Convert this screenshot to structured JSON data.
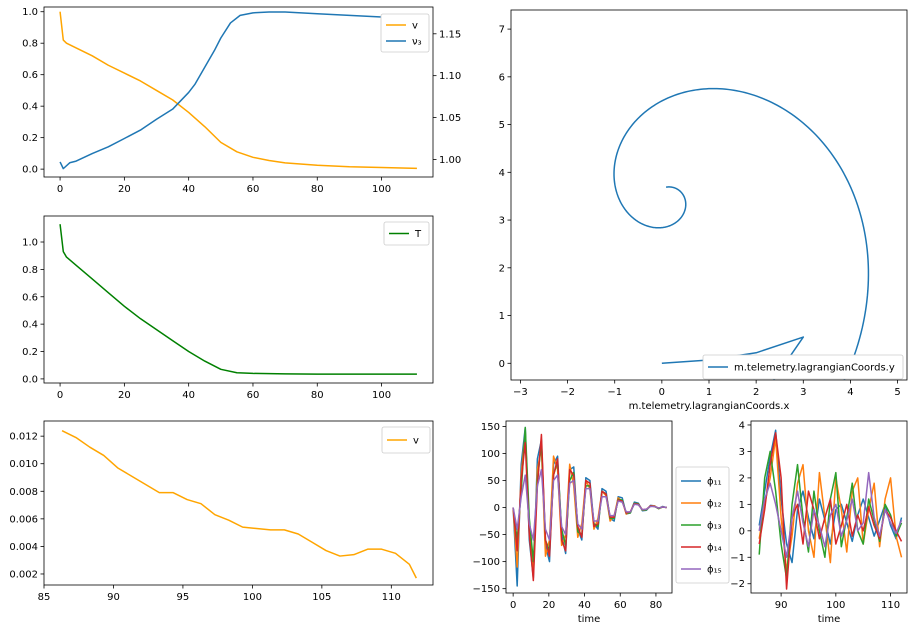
{
  "chart_data": [
    {
      "id": "p1",
      "type": "line",
      "xlim": [
        -5,
        116
      ],
      "ylim": [
        -0.05,
        1.03
      ],
      "y2lim": [
        0.979,
        1.182
      ],
      "xticks": [
        0,
        20,
        40,
        60,
        80,
        100
      ],
      "xtick_labels": [
        "0",
        "20",
        "40",
        "60",
        "80",
        "100"
      ],
      "yticks": [
        0.0,
        0.2,
        0.4,
        0.6,
        0.8,
        1.0
      ],
      "ytick_labels": [
        "0.0",
        "0.2",
        "0.4",
        "0.6",
        "0.8",
        "1.0"
      ],
      "y2ticks": [
        1.0,
        1.05,
        1.1,
        1.15
      ],
      "y2tick_labels": [
        "1.00",
        "1.05",
        "1.10",
        "1.15"
      ],
      "legend_position": "top-right",
      "series": [
        {
          "name": "v",
          "color": "#ffa500",
          "axis": "left",
          "x": [
            0,
            1,
            2,
            5,
            10,
            15,
            20,
            25,
            30,
            35,
            40,
            45,
            50,
            55,
            60,
            65,
            70,
            80,
            90,
            100,
            111
          ],
          "y": [
            1.0,
            0.82,
            0.8,
            0.77,
            0.72,
            0.66,
            0.61,
            0.56,
            0.5,
            0.44,
            0.36,
            0.27,
            0.17,
            0.11,
            0.075,
            0.055,
            0.04,
            0.025,
            0.015,
            0.01,
            0.005
          ]
        },
        {
          "name": "ν₃",
          "color": "#1f77b4",
          "axis": "right",
          "x": [
            0,
            1,
            3,
            5,
            10,
            15,
            20,
            25,
            30,
            35,
            40,
            42,
            45,
            48,
            50,
            53,
            56,
            60,
            65,
            70,
            80,
            90,
            100,
            111
          ],
          "y": [
            0.997,
            0.989,
            0.996,
            0.998,
            1.007,
            1.015,
            1.025,
            1.035,
            1.048,
            1.06,
            1.08,
            1.09,
            1.11,
            1.13,
            1.145,
            1.163,
            1.172,
            1.175,
            1.176,
            1.176,
            1.174,
            1.172,
            1.17,
            1.168
          ]
        }
      ]
    },
    {
      "id": "p2",
      "type": "line",
      "xlim": [
        -5,
        116
      ],
      "ylim": [
        -0.03,
        1.19
      ],
      "xticks": [
        0,
        20,
        40,
        60,
        80,
        100
      ],
      "xtick_labels": [
        "0",
        "20",
        "40",
        "60",
        "80",
        "100"
      ],
      "yticks": [
        0.0,
        0.2,
        0.4,
        0.6,
        0.8,
        1.0
      ],
      "ytick_labels": [
        "0.0",
        "0.2",
        "0.4",
        "0.6",
        "0.8",
        "1.0"
      ],
      "legend_position": "top-right",
      "series": [
        {
          "name": "T",
          "color": "#008000",
          "x": [
            0,
            1,
            2,
            5,
            10,
            15,
            20,
            25,
            30,
            35,
            40,
            45,
            50,
            55,
            60,
            70,
            80,
            90,
            100,
            111
          ],
          "y": [
            1.13,
            0.93,
            0.89,
            0.83,
            0.73,
            0.63,
            0.53,
            0.44,
            0.36,
            0.28,
            0.2,
            0.13,
            0.07,
            0.045,
            0.04,
            0.037,
            0.035,
            0.035,
            0.035,
            0.035
          ]
        }
      ]
    },
    {
      "id": "p3",
      "type": "line",
      "xlim": [
        85,
        113
      ],
      "ylim": [
        0.0012,
        0.0131
      ],
      "xticks": [
        85,
        90,
        95,
        100,
        105,
        110
      ],
      "xtick_labels": [
        "85",
        "90",
        "95",
        "100",
        "105",
        "110"
      ],
      "yticks": [
        0.002,
        0.004,
        0.006,
        0.008,
        0.01,
        0.012
      ],
      "ytick_labels": [
        "0.002",
        "0.004",
        "0.006",
        "0.008",
        "0.010",
        "0.012"
      ],
      "legend_position": "top-right",
      "series": [
        {
          "name": "v",
          "color": "#ffa500",
          "x": [
            86.3,
            87.3,
            88.3,
            89.3,
            90.3,
            91.3,
            92.3,
            93.3,
            94.3,
            95.3,
            96.3,
            97.3,
            98.3,
            99.3,
            100.3,
            101.3,
            102.3,
            103.3,
            104.3,
            105.3,
            106.3,
            107.3,
            108.3,
            109.3,
            110.3,
            111.3,
            111.8
          ],
          "y": [
            0.0124,
            0.0119,
            0.0112,
            0.0106,
            0.0097,
            0.0091,
            0.0085,
            0.0079,
            0.0079,
            0.0074,
            0.0071,
            0.0063,
            0.0059,
            0.0054,
            0.0053,
            0.0052,
            0.0052,
            0.0049,
            0.0043,
            0.0037,
            0.0033,
            0.0034,
            0.0038,
            0.0038,
            0.0035,
            0.0027,
            0.0017
          ]
        }
      ]
    },
    {
      "id": "p4",
      "type": "line",
      "xlabel": "m.telemetry.lagrangianCoords.x",
      "xlim": [
        -3.2,
        5.2
      ],
      "ylim": [
        -0.35,
        7.4
      ],
      "xticks": [
        -3,
        -2,
        -1,
        0,
        1,
        2,
        3,
        4,
        5
      ],
      "xtick_labels": [
        "−3",
        "−2",
        "−1",
        "0",
        "1",
        "2",
        "3",
        "4",
        "5"
      ],
      "yticks": [
        0,
        1,
        2,
        3,
        4,
        5,
        6,
        7
      ],
      "ytick_labels": [
        "0",
        "1",
        "2",
        "3",
        "4",
        "5",
        "6",
        "7"
      ],
      "legend_position": "bottom-right",
      "spiral": {
        "center_x": 0.05,
        "center_y": 3.5,
        "a": 0.95,
        "b": 0.39,
        "start_angle_deg": 90,
        "theta_max": 9.45
      },
      "series": [
        {
          "name": "m.telemetry.lagrangianCoords.y",
          "color": "#1f77b4"
        }
      ]
    },
    {
      "id": "p5",
      "type": "line",
      "xlabel": "time",
      "xlim": [
        -4,
        89
      ],
      "ylim": [
        -158,
        160
      ],
      "xticks": [
        0,
        20,
        40,
        60,
        80
      ],
      "xtick_labels": [
        "0",
        "20",
        "40",
        "60",
        "80"
      ],
      "yticks": [
        -150,
        -100,
        -50,
        0,
        50,
        100,
        150
      ],
      "ytick_labels": [
        "−150",
        "−100",
        "−50",
        "0",
        "50",
        "100",
        "150"
      ],
      "legend_position": "outside-right",
      "series": [
        {
          "name": "ϕ₁₁",
          "color": "#1f77b4",
          "x_start": 0,
          "x_end": 86,
          "y": [
            0,
            -145,
            80,
            148,
            -60,
            -130,
            90,
            125,
            -70,
            -100,
            80,
            95,
            -50,
            -85,
            70,
            75,
            -40,
            -60,
            55,
            50,
            -30,
            -40,
            35,
            30,
            -20,
            -25,
            20,
            18,
            -12,
            -10,
            10,
            8,
            -6,
            -5,
            4,
            3,
            -2,
            2,
            0
          ]
        },
        {
          "name": "ϕ₁₂",
          "color": "#ff7f0e",
          "x_start": 0,
          "x_end": 86,
          "y": [
            0,
            -110,
            60,
            140,
            -40,
            -120,
            70,
            110,
            -90,
            -60,
            95,
            70,
            -70,
            -50,
            80,
            40,
            -55,
            -30,
            50,
            35,
            -40,
            -20,
            30,
            22,
            -25,
            -15,
            18,
            12,
            -12,
            -8,
            8,
            6,
            -5,
            -4,
            3,
            3,
            -2,
            1,
            0
          ]
        },
        {
          "name": "ϕ₁₃",
          "color": "#2ca02c",
          "x_start": 0,
          "x_end": 86,
          "y": [
            0,
            -60,
            30,
            148,
            -20,
            -100,
            50,
            120,
            -60,
            -80,
            60,
            85,
            -40,
            -70,
            50,
            65,
            -45,
            -50,
            40,
            40,
            -30,
            -35,
            30,
            25,
            -20,
            -20,
            15,
            14,
            -10,
            -10,
            8,
            7,
            -5,
            -4,
            3,
            2,
            -2,
            1,
            0
          ]
        },
        {
          "name": "ϕ₁₄",
          "color": "#d62728",
          "x_start": 0,
          "x_end": 86,
          "y": [
            0,
            -80,
            50,
            120,
            -50,
            -135,
            40,
            135,
            -60,
            -90,
            60,
            90,
            -60,
            -80,
            70,
            60,
            -35,
            -55,
            50,
            45,
            -35,
            -30,
            30,
            25,
            -18,
            -18,
            14,
            12,
            -10,
            -8,
            7,
            6,
            -4,
            -3,
            3,
            2,
            -1,
            1,
            0
          ]
        },
        {
          "name": "ϕ₁₅",
          "color": "#9467bd",
          "x_start": 0,
          "x_end": 86,
          "y": [
            0,
            -40,
            20,
            60,
            -30,
            -60,
            40,
            70,
            -40,
            -60,
            50,
            60,
            -35,
            -50,
            45,
            50,
            -30,
            -40,
            35,
            35,
            -25,
            -25,
            20,
            20,
            -15,
            -15,
            12,
            10,
            -8,
            -8,
            6,
            5,
            -4,
            -3,
            2,
            2,
            -1,
            1,
            0
          ]
        }
      ]
    },
    {
      "id": "p6",
      "type": "line",
      "xlabel": "time",
      "xlim": [
        84.5,
        113
      ],
      "ylim": [
        -2.35,
        4.15
      ],
      "xticks": [
        90,
        100,
        110
      ],
      "xtick_labels": [
        "90",
        "100",
        "110"
      ],
      "yticks": [
        -2,
        -1,
        0,
        1,
        2,
        3,
        4
      ],
      "ytick_labels": [
        "−2",
        "−1",
        "0",
        "1",
        "2",
        "3",
        "4"
      ],
      "series": [
        {
          "name": "ϕ₁₁",
          "color": "#1f77b4",
          "x_start": 86,
          "x_end": 112,
          "y": [
            0.2,
            1.5,
            2.8,
            3.8,
            1.2,
            -0.5,
            -1.2,
            0.8,
            1.5,
            0.5,
            -0.3,
            1.2,
            0.4,
            -0.5,
            0.8,
            1.0,
            0.3,
            -0.4,
            0.6,
            1.2,
            0.5,
            -0.2,
            0.4,
            1.0,
            0.2,
            -0.3,
            0.5
          ]
        },
        {
          "name": "ϕ₁₂",
          "color": "#ff7f0e",
          "x_start": 86,
          "x_end": 112,
          "y": [
            -0.3,
            1.0,
            2.0,
            3.5,
            0.5,
            -1.5,
            -0.2,
            1.8,
            2.5,
            0.0,
            -1.0,
            2.2,
            0.5,
            -1.2,
            2.0,
            0.8,
            -0.8,
            1.5,
            2.0,
            -0.5,
            0.8,
            1.8,
            -0.6,
            1.2,
            2.0,
            -0.2,
            -1.0
          ]
        },
        {
          "name": "ϕ₁₃",
          "color": "#2ca02c",
          "x_start": 86,
          "x_end": 112,
          "y": [
            -0.9,
            2.0,
            3.0,
            1.5,
            -0.5,
            -1.8,
            1.0,
            2.5,
            0.5,
            -0.8,
            1.5,
            0.0,
            -1.0,
            1.2,
            2.2,
            -0.6,
            0.5,
            1.8,
            0.0,
            -0.5,
            1.2,
            0.4,
            -0.4,
            1.0,
            0.6,
            -0.2,
            0.3
          ]
        },
        {
          "name": "ϕ₁₄",
          "color": "#d62728",
          "x_start": 86,
          "x_end": 112,
          "y": [
            -0.5,
            0.8,
            2.5,
            3.7,
            2.0,
            -2.2,
            0.5,
            1.0,
            -0.5,
            1.5,
            0.8,
            -0.3,
            0.5,
            1.2,
            -0.5,
            0.2,
            1.0,
            -0.2,
            0.6,
            0.0,
            0.9,
            0.2,
            -0.3,
            0.8,
            0.5,
            0.0,
            -0.4
          ]
        },
        {
          "name": "ϕ₁₅",
          "color": "#9467bd",
          "x_start": 86,
          "x_end": 112,
          "y": [
            0.0,
            1.2,
            1.8,
            1.0,
            0.0,
            -1.0,
            0.5,
            1.5,
            0.3,
            -0.6,
            0.8,
            0.2,
            -0.6,
            0.6,
            1.0,
            -0.2,
            0.4,
            1.2,
            0.0,
            0.3,
            2.2,
            0.5,
            -0.2,
            0.8,
            0.3,
            -0.1,
            0.4
          ]
        }
      ]
    }
  ]
}
